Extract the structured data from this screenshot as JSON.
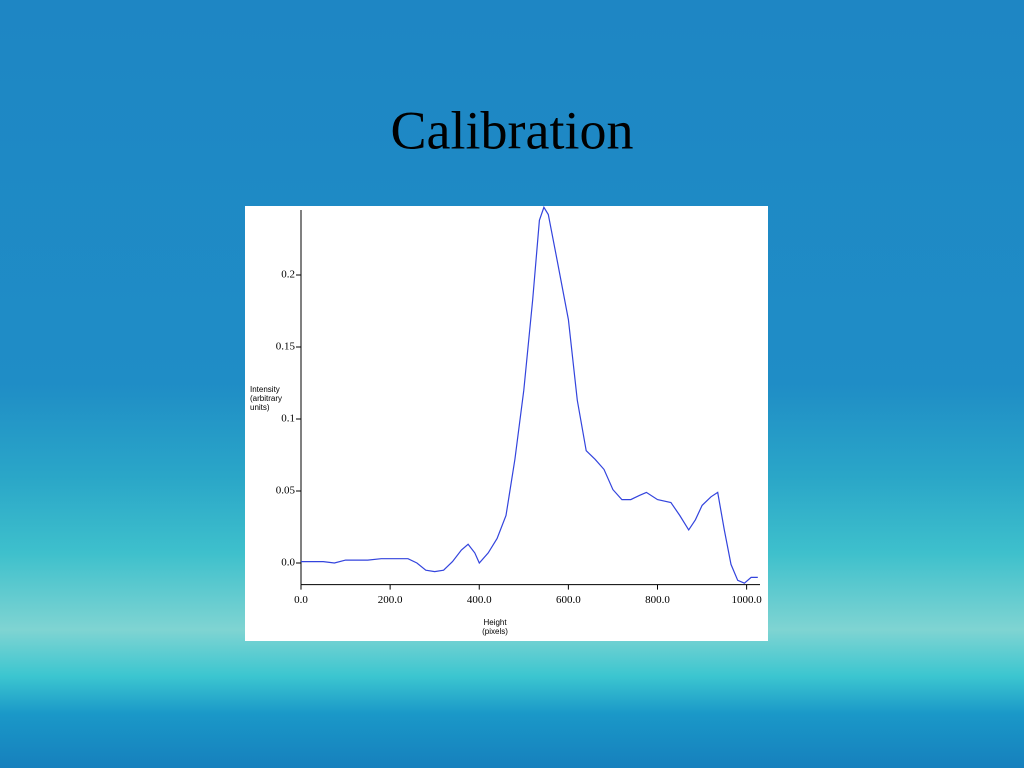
{
  "chart_data": {
    "type": "line",
    "title": "Calibration",
    "x_label": "Height (pixels)",
    "y_label": "Intensity (arbitrary units)",
    "x": [
      0,
      50,
      75,
      100,
      150,
      180,
      220,
      240,
      260,
      280,
      300,
      320,
      340,
      360,
      375,
      390,
      400,
      420,
      440,
      460,
      480,
      500,
      520,
      535,
      545,
      555,
      575,
      600,
      620,
      640,
      660,
      680,
      700,
      720,
      740,
      760,
      775,
      800,
      830,
      850,
      870,
      885,
      900,
      920,
      935,
      950,
      965,
      980,
      995,
      1010,
      1025
    ],
    "series": [
      {
        "color": "#3344dd",
        "values": [
          0.001,
          0.001,
          0,
          0.002,
          0.002,
          0.003,
          0.003,
          0.003,
          0,
          -0.005,
          -0.006,
          -0.005,
          0.001,
          0.009,
          0.013,
          0.007,
          0,
          0.007,
          0.017,
          0.033,
          0.072,
          0.12,
          0.183,
          0.238,
          0.247,
          0.242,
          0.21,
          0.169,
          0.113,
          0.078,
          0.072,
          0.065,
          0.051,
          0.044,
          0.044,
          0.047,
          0.049,
          0.044,
          0.042,
          0.033,
          0.023,
          0.03,
          0.04,
          0.046,
          0.049,
          0.023,
          -0.001,
          -0.012,
          -0.014,
          -0.01,
          -0.01
        ]
      }
    ],
    "xlim": [
      0,
      1030
    ],
    "xticks": [
      {
        "value": 0,
        "label": "0.0"
      },
      {
        "value": 200,
        "label": "200.0"
      },
      {
        "value": 400,
        "label": "400.0"
      },
      {
        "value": 600,
        "label": "600.0"
      },
      {
        "value": 800,
        "label": "800.0"
      },
      {
        "value": 1000,
        "label": "1000.0"
      }
    ],
    "ylim": [
      -0.015,
      0.25
    ],
    "yticks": [
      {
        "value": 0,
        "label": "0.0"
      },
      0.05,
      0.1,
      0.15,
      0.2
    ]
  }
}
